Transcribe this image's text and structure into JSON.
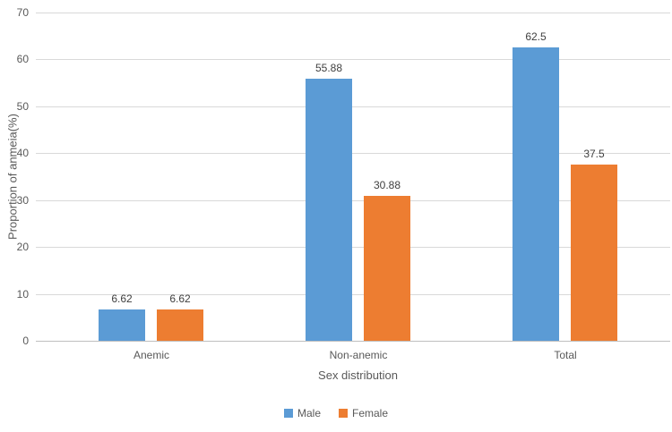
{
  "chart_data": {
    "type": "bar",
    "title": "",
    "categories": [
      "Anemic",
      "Non-anemic",
      "Total"
    ],
    "series": [
      {
        "name": "Male",
        "color": "#5b9bd5",
        "values": [
          6.62,
          55.88,
          62.5
        ],
        "labels": [
          "6.62",
          "55.88",
          "62.5"
        ]
      },
      {
        "name": "Female",
        "color": "#ed7d31",
        "values": [
          6.62,
          30.88,
          37.5
        ],
        "labels": [
          "6.62",
          "30.88",
          "37.5"
        ]
      }
    ],
    "xlabel": "Sex distribution",
    "ylabel": "Proportion of anmeia(%)",
    "ylim": [
      0,
      70
    ],
    "yticks": [
      0,
      10,
      20,
      30,
      40,
      50,
      60,
      70
    ],
    "grid": true,
    "legend_position": "bottom",
    "colors": {
      "background": "#ffffff",
      "gridline": "#d9d9d9",
      "axis_line": "#bfbfbf",
      "tick_text": "#595959",
      "data_label_text": "#404040"
    }
  }
}
